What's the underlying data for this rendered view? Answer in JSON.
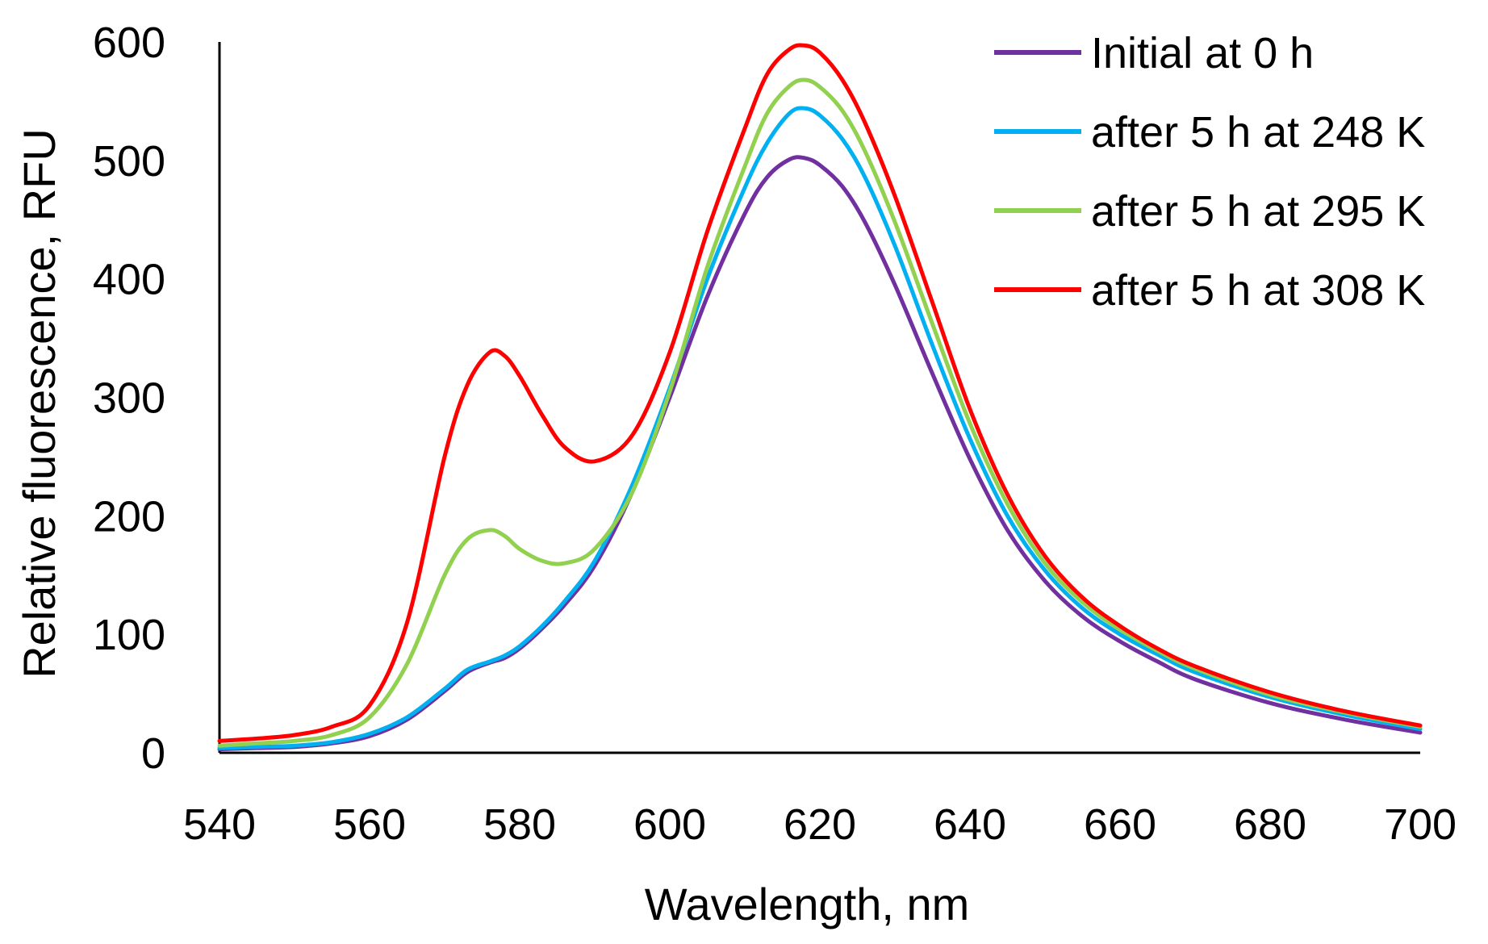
{
  "chart_data": {
    "type": "line",
    "title": "",
    "xlabel": "Wavelength, nm",
    "ylabel": "Relative fluorescence, RFU",
    "xlim": [
      540,
      700
    ],
    "ylim": [
      0,
      600
    ],
    "xticks": [
      540,
      560,
      580,
      600,
      620,
      640,
      660,
      680,
      700
    ],
    "yticks": [
      0,
      100,
      200,
      300,
      400,
      500,
      600
    ],
    "grid": false,
    "legend_position": "top-right",
    "x": [
      540,
      545,
      550,
      555,
      560,
      565,
      570,
      573,
      576,
      578,
      580,
      583,
      586,
      590,
      595,
      600,
      605,
      610,
      613,
      616,
      618,
      620,
      623,
      626,
      630,
      635,
      640,
      645,
      650,
      655,
      660,
      665,
      670,
      680,
      690,
      700
    ],
    "series": [
      {
        "name": "Initial at 0 h",
        "color": "#7030a0",
        "values": [
          3,
          4,
          5,
          8,
          14,
          28,
          52,
          68,
          76,
          80,
          88,
          105,
          125,
          158,
          220,
          300,
          385,
          455,
          486,
          501,
          502,
          496,
          478,
          448,
          395,
          320,
          248,
          188,
          145,
          115,
          94,
          77,
          62,
          42,
          28,
          17
        ]
      },
      {
        "name": "after 5 h at 248 K",
        "color": "#00b0f0",
        "values": [
          4,
          5,
          6,
          9,
          16,
          30,
          54,
          70,
          77,
          82,
          90,
          107,
          128,
          162,
          226,
          308,
          400,
          477,
          515,
          540,
          544,
          538,
          518,
          486,
          428,
          344,
          265,
          200,
          154,
          122,
          100,
          83,
          68,
          47,
          32,
          20
        ]
      },
      {
        "name": "after 5 h at 295 K",
        "color": "#92d050",
        "values": [
          6,
          8,
          10,
          15,
          30,
          75,
          150,
          180,
          188,
          183,
          172,
          162,
          160,
          172,
          220,
          305,
          410,
          495,
          540,
          563,
          568,
          562,
          542,
          508,
          448,
          362,
          278,
          210,
          160,
          127,
          104,
          86,
          71,
          49,
          34,
          22
        ]
      },
      {
        "name": "after 5 h at 308 K",
        "color": "#ff0000",
        "values": [
          10,
          12,
          15,
          22,
          40,
          110,
          250,
          310,
          338,
          335,
          318,
          285,
          258,
          246,
          268,
          338,
          440,
          527,
          573,
          594,
          597,
          591,
          568,
          532,
          470,
          380,
          290,
          218,
          166,
          131,
          107,
          88,
          73,
          51,
          35,
          23
        ]
      }
    ]
  }
}
